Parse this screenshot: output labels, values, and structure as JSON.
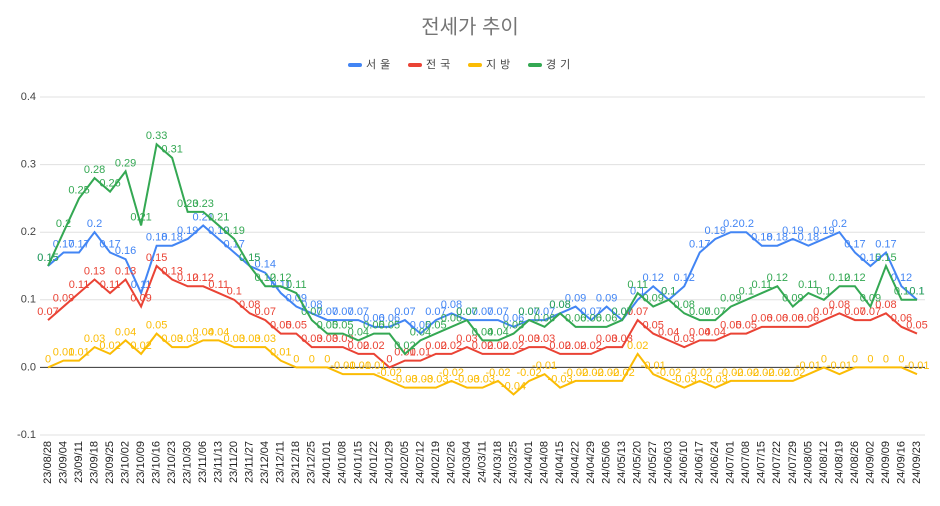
{
  "chart_data": {
    "type": "line",
    "title": "전세가 추이",
    "categories": [
      "23/08/28",
      "23/09/04",
      "23/09/11",
      "23/09/18",
      "23/09/25",
      "23/10/02",
      "23/10/09",
      "23/10/16",
      "23/10/23",
      "23/10/30",
      "23/11/06",
      "23/11/13",
      "23/11/20",
      "23/11/27",
      "23/12/04",
      "23/12/11",
      "23/12/18",
      "23/12/25",
      "24/01/01",
      "24/01/08",
      "24/01/15",
      "24/01/22",
      "24/01/29",
      "24/02/05",
      "24/02/12",
      "24/02/19",
      "24/02/26",
      "24/03/04",
      "24/03/11",
      "24/03/18",
      "24/03/25",
      "24/04/01",
      "24/04/08",
      "24/04/15",
      "24/04/22",
      "24/04/29",
      "24/05/06",
      "24/05/13",
      "24/05/20",
      "24/05/27",
      "24/06/03",
      "24/06/10",
      "24/06/17",
      "24/06/24",
      "24/07/01",
      "24/07/08",
      "24/07/15",
      "24/07/22",
      "24/07/29",
      "24/08/05",
      "24/08/12",
      "24/08/19",
      "24/08/26",
      "24/09/02",
      "24/09/09",
      "24/09/16",
      "24/09/23"
    ],
    "series": [
      {
        "name": "서울",
        "color": "#4285f4",
        "values": [
          0.15,
          0.17,
          0.17,
          0.2,
          0.17,
          0.16,
          0.11,
          0.18,
          0.18,
          0.19,
          0.21,
          0.19,
          0.17,
          0.15,
          0.14,
          0.11,
          0.09,
          0.08,
          0.07,
          0.07,
          0.07,
          0.06,
          0.06,
          0.07,
          0.05,
          0.07,
          0.08,
          0.07,
          0.07,
          0.07,
          0.06,
          0.07,
          0.07,
          0.08,
          0.09,
          0.07,
          0.09,
          0.07,
          0.1,
          0.12,
          0.1,
          0.12,
          0.17,
          0.19,
          0.2,
          0.2,
          0.18,
          0.18,
          0.19,
          0.18,
          0.19,
          0.2,
          0.17,
          0.15,
          0.17,
          0.12,
          0.1
        ]
      },
      {
        "name": "전국",
        "color": "#ea4335",
        "values": [
          0.07,
          0.09,
          0.11,
          0.13,
          0.11,
          0.13,
          0.09,
          0.15,
          0.13,
          0.12,
          0.12,
          0.11,
          0.1,
          0.08,
          0.07,
          0.05,
          0.05,
          0.03,
          0.03,
          0.03,
          0.02,
          0.02,
          0,
          0.01,
          0.01,
          0.02,
          0.02,
          0.03,
          0.02,
          0.02,
          0.02,
          0.03,
          0.03,
          0.02,
          0.02,
          0.02,
          0.03,
          0.03,
          0.07,
          0.05,
          0.04,
          0.03,
          0.04,
          0.04,
          0.05,
          0.05,
          0.06,
          0.06,
          0.06,
          0.06,
          0.07,
          0.08,
          0.07,
          0.07,
          0.08,
          0.06,
          0.05
        ]
      },
      {
        "name": "지방",
        "color": "#fbbc04",
        "values": [
          0,
          0.01,
          0.01,
          0.03,
          0.02,
          0.04,
          0.02,
          0.05,
          0.03,
          0.03,
          0.04,
          0.04,
          0.03,
          0.03,
          0.03,
          0.01,
          0,
          0,
          0,
          -0.01,
          -0.01,
          -0.01,
          -0.02,
          -0.03,
          -0.03,
          -0.03,
          -0.02,
          -0.03,
          -0.03,
          -0.02,
          -0.04,
          -0.02,
          -0.01,
          -0.03,
          -0.02,
          -0.02,
          -0.02,
          -0.02,
          0.02,
          -0.01,
          -0.02,
          -0.03,
          -0.02,
          -0.03,
          -0.02,
          -0.02,
          -0.02,
          -0.02,
          -0.02,
          -0.01,
          0,
          -0.01,
          0,
          0,
          0,
          0,
          -0.01
        ]
      },
      {
        "name": "경기",
        "color": "#34a853",
        "values": [
          0.15,
          0.2,
          0.25,
          0.28,
          0.26,
          0.29,
          0.21,
          0.33,
          0.31,
          0.23,
          0.23,
          0.21,
          0.19,
          0.15,
          0.12,
          0.12,
          0.11,
          0.07,
          0.05,
          0.05,
          0.04,
          0.05,
          0.05,
          0.02,
          0.04,
          0.05,
          0.06,
          0.07,
          0.04,
          0.04,
          0.05,
          0.07,
          0.06,
          0.08,
          0.06,
          0.06,
          0.06,
          0.07,
          0.11,
          0.09,
          0.1,
          0.08,
          0.07,
          0.07,
          0.09,
          0.1,
          0.11,
          0.12,
          0.09,
          0.11,
          0.1,
          0.12,
          0.12,
          0.09,
          0.15,
          0.1,
          0.1
        ]
      }
    ],
    "ylim": [
      -0.1,
      0.4
    ],
    "yticks": [
      -0.1,
      {
        "value": 0,
        "label": "0.0"
      },
      0.1,
      0.2,
      0.3,
      0.4
    ],
    "grid": true,
    "legend": "top"
  }
}
